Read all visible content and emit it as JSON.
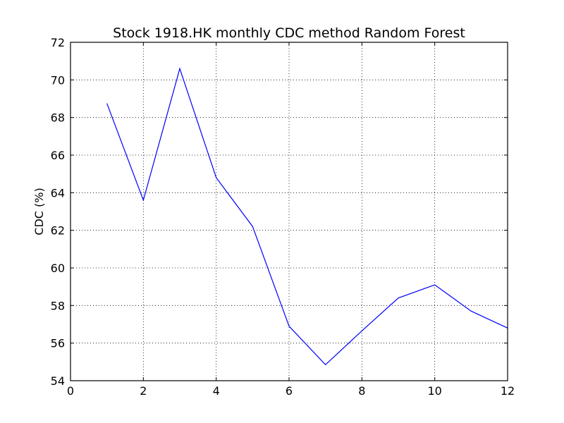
{
  "chart_data": {
    "type": "line",
    "title": "Stock 1918.HK monthly CDC method Random Forest",
    "xlabel": "",
    "ylabel": "CDC (%)",
    "xlim": [
      0,
      12
    ],
    "ylim": [
      54,
      72
    ],
    "xticks": [
      0,
      2,
      4,
      6,
      8,
      10,
      12
    ],
    "yticks": [
      54,
      56,
      58,
      60,
      62,
      64,
      66,
      68,
      70,
      72
    ],
    "grid": true,
    "series": [
      {
        "color": "#0000ff",
        "x": [
          1,
          2,
          3,
          4,
          5,
          6,
          7,
          8,
          9,
          10,
          11,
          12
        ],
        "y": [
          68.75,
          63.6,
          70.6,
          64.8,
          62.2,
          56.9,
          54.85,
          56.65,
          58.4,
          59.1,
          57.7,
          56.8
        ]
      }
    ]
  }
}
